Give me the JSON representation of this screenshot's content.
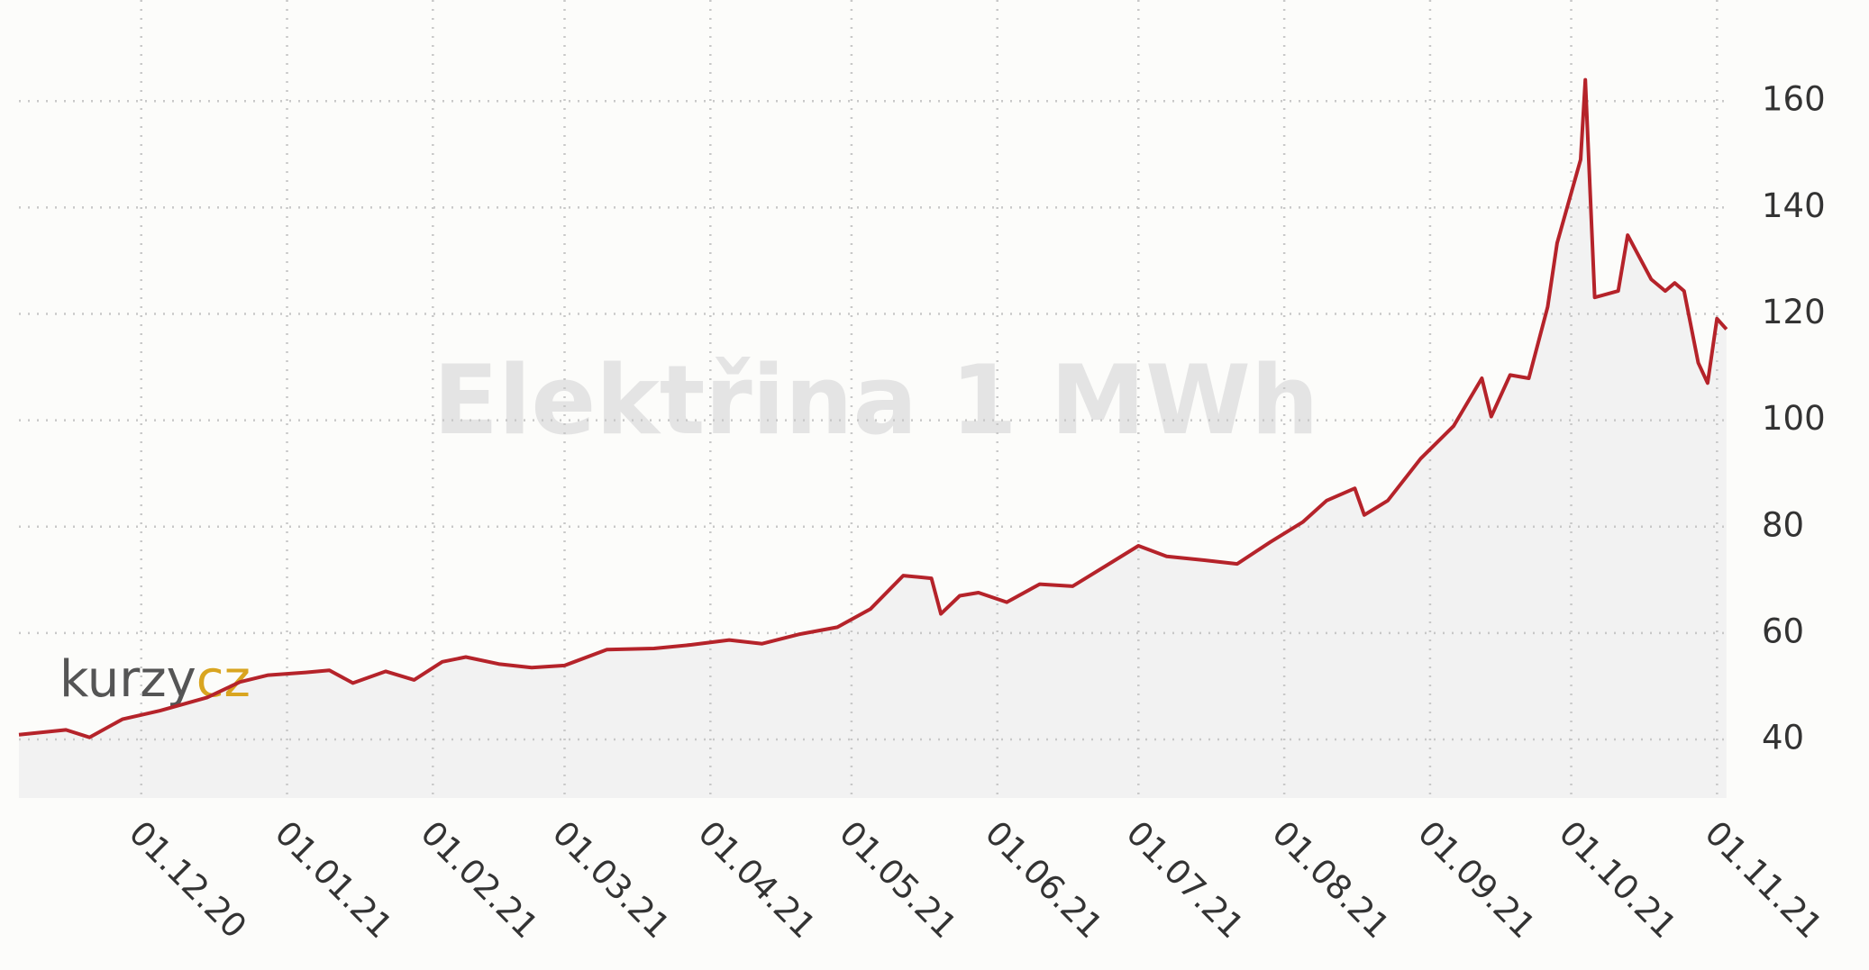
{
  "chart_data": {
    "type": "line",
    "title": "Elektřina 1 MWh",
    "logo": [
      "kurzy",
      "cz"
    ],
    "x": [
      "2020-11-05",
      "2020-11-15",
      "2020-11-20",
      "2020-11-27",
      "2020-12-05",
      "2020-12-15",
      "2020-12-22",
      "2020-12-28",
      "2021-01-05",
      "2021-01-10",
      "2021-01-15",
      "2021-01-22",
      "2021-01-28",
      "2021-02-03",
      "2021-02-08",
      "2021-02-15",
      "2021-02-22",
      "2021-03-01",
      "2021-03-10",
      "2021-03-20",
      "2021-03-28",
      "2021-04-05",
      "2021-04-12",
      "2021-04-20",
      "2021-04-28",
      "2021-05-05",
      "2021-05-12",
      "2021-05-18",
      "2021-05-20",
      "2021-05-24",
      "2021-05-28",
      "2021-06-03",
      "2021-06-10",
      "2021-06-17",
      "2021-06-24",
      "2021-07-01",
      "2021-07-07",
      "2021-07-15",
      "2021-07-22",
      "2021-07-29",
      "2021-08-05",
      "2021-08-10",
      "2021-08-16",
      "2021-08-18",
      "2021-08-23",
      "2021-08-30",
      "2021-09-06",
      "2021-09-12",
      "2021-09-14",
      "2021-09-18",
      "2021-09-22",
      "2021-09-26",
      "2021-09-28",
      "2021-10-03",
      "2021-10-04",
      "2021-10-06",
      "2021-10-11",
      "2021-10-13",
      "2021-10-18",
      "2021-10-21",
      "2021-10-23",
      "2021-10-25",
      "2021-10-28",
      "2021-10-30",
      "2021-11-01",
      "2021-11-03"
    ],
    "series": [
      {
        "name": "Elektřina 1 MWh",
        "color": "#b5232a",
        "values": [
          40.9,
          41.8,
          40.4,
          43.8,
          45.4,
          47.9,
          50.8,
          52.1,
          52.6,
          53,
          50.6,
          52.8,
          51.2,
          54.6,
          55.5,
          54.2,
          53.5,
          53.9,
          56.9,
          57.1,
          57.8,
          58.7,
          58,
          59.8,
          61.1,
          64.5,
          70.8,
          70.3,
          63.6,
          67,
          67.6,
          65.8,
          69.2,
          68.8,
          72.6,
          76.4,
          74.4,
          73.7,
          73,
          77.1,
          80.9,
          84.9,
          87.2,
          82.2,
          84.9,
          92.8,
          98.9,
          107.9,
          100.7,
          108.5,
          107.9,
          121.3,
          133.3,
          149,
          164,
          123.1,
          124.3,
          134.8,
          126.5,
          124.3,
          125.8,
          124.3,
          110.8,
          107,
          119.1,
          117.1
        ]
      }
    ],
    "xlim": [
      "2020-11-05",
      "2021-11-04"
    ],
    "xticks": [
      {
        "value": "2020-12-01",
        "label": "01.12.20"
      },
      {
        "value": "2021-01-01",
        "label": "01.01.21"
      },
      {
        "value": "2021-02-01",
        "label": "01.02.21"
      },
      {
        "value": "2021-03-01",
        "label": "01.03.21"
      },
      {
        "value": "2021-04-01",
        "label": "01.04.21"
      },
      {
        "value": "2021-05-01",
        "label": "01.05.21"
      },
      {
        "value": "2021-06-01",
        "label": "01.06.21"
      },
      {
        "value": "2021-07-01",
        "label": "01.07.21"
      },
      {
        "value": "2021-08-01",
        "label": "01.08.21"
      },
      {
        "value": "2021-09-01",
        "label": "01.09.21"
      },
      {
        "value": "2021-10-01",
        "label": "01.10.21"
      },
      {
        "value": "2021-11-01",
        "label": "01.11.21"
      }
    ],
    "ylim": [
      29,
      179
    ],
    "yticks": [
      40,
      60,
      80,
      100,
      120,
      140,
      160
    ],
    "grid": true
  }
}
